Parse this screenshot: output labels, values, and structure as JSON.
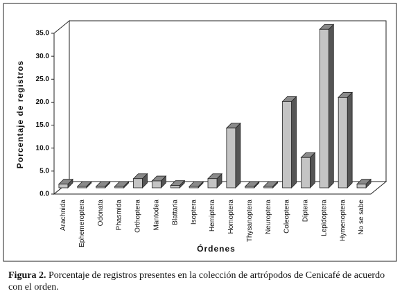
{
  "chart_data": {
    "type": "bar3d",
    "y_label": "Porcentaje de registros",
    "x_label": "Órdenes",
    "categories": [
      "Arachnida",
      "Ephemeroptera",
      "Odonata",
      "Phasmida",
      "Orthoptera",
      "Mantodea",
      "Blattaria",
      "Isoptera",
      "Hemiptera",
      "Homoptera",
      "Thysanoptera",
      "Neuroptera",
      "Coleoptera",
      "Diptera",
      "Lepidoptera",
      "Hymenoptera",
      "No se sabe"
    ],
    "values": [
      0.8,
      0.3,
      0.3,
      0.3,
      2.0,
      1.5,
      0.5,
      0.3,
      2.0,
      13.0,
      0.3,
      0.3,
      18.8,
      6.6,
      34.5,
      19.7,
      0.8
    ],
    "color": "#c4c4c4",
    "ylim": [
      0,
      35
    ],
    "yticks": [
      {
        "value": 0,
        "label": "0.0"
      },
      {
        "value": 5,
        "label": "5.0"
      },
      {
        "value": 10,
        "label": "10.0"
      },
      {
        "value": 15,
        "label": "15.0"
      },
      {
        "value": 20,
        "label": "20.0"
      },
      {
        "value": 25,
        "label": "25.0"
      },
      {
        "value": 30,
        "label": "30.0"
      },
      {
        "value": 35,
        "label": "35.0"
      }
    ]
  },
  "caption": {
    "label": "Figura 2.",
    "text": "Porcentaje de registros presentes en la colección de artrópodos de Cenicafé de acuerdo con el orden."
  }
}
